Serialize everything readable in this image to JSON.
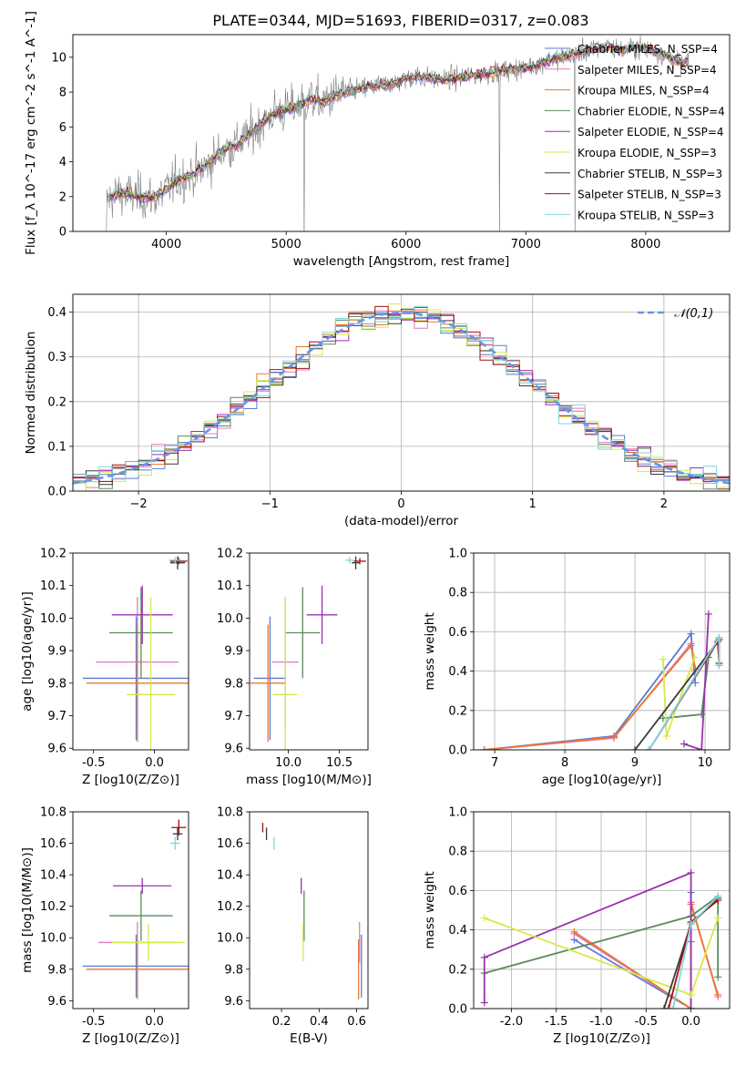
{
  "figure": {
    "title": "PLATE=0344, MJD=51693, FIBERID=0317, z=0.083"
  },
  "chart_data": [
    {
      "id": "spectrum",
      "type": "line",
      "title": "PLATE=0344, MJD=51693, FIBERID=0317, z=0.083",
      "xlabel": "wavelength [Angstrom, rest frame]",
      "ylabel": "Flux [f_λ 10^-17 erg cm^-2 s^-1 A^-1]",
      "xlim": [
        3220,
        8700
      ],
      "ylim": [
        0,
        11.3
      ],
      "xticks": [
        4000,
        5000,
        6000,
        7000,
        8000
      ],
      "yticks": [
        0,
        2,
        4,
        6,
        8,
        10
      ],
      "grid": false,
      "legend_position": "right",
      "legend": [
        {
          "name": "Chabrier MILES, N_SSP=4",
          "color": "#5b7bd5"
        },
        {
          "name": "Salpeter MILES, N_SSP=4",
          "color": "#e377c2"
        },
        {
          "name": "Kroupa MILES, N_SSP=4",
          "color": "#e8792f"
        },
        {
          "name": "Chabrier ELODIE, N_SSP=4",
          "color": "#5a8a5a"
        },
        {
          "name": "Salpeter ELODIE, N_SSP=4",
          "color": "#9b30b0"
        },
        {
          "name": "Kroupa ELODIE, N_SSP=3",
          "color": "#d8e84a"
        },
        {
          "name": "Chabrier STELIB, N_SSP=3",
          "color": "#3a3a3a"
        },
        {
          "name": "Salpeter STELIB, N_SSP=3",
          "color": "#a01010"
        },
        {
          "name": "Kroupa STELIB, N_SSP=3",
          "color": "#7fd6dc"
        }
      ],
      "data_color": "#808080",
      "continuum": [
        [
          3500,
          1.8
        ],
        [
          3600,
          2.2
        ],
        [
          3700,
          2.1
        ],
        [
          3800,
          2.0
        ],
        [
          3900,
          1.9
        ],
        [
          4000,
          2.4
        ],
        [
          4100,
          3.0
        ],
        [
          4200,
          3.2
        ],
        [
          4300,
          3.6
        ],
        [
          4400,
          4.2
        ],
        [
          4500,
          4.8
        ],
        [
          4600,
          5.0
        ],
        [
          4700,
          5.6
        ],
        [
          4800,
          6.2
        ],
        [
          4900,
          6.8
        ],
        [
          5000,
          7.0
        ],
        [
          5100,
          7.2
        ],
        [
          5200,
          7.6
        ],
        [
          5300,
          7.4
        ],
        [
          5400,
          7.8
        ],
        [
          5500,
          8.0
        ],
        [
          5600,
          8.2
        ],
        [
          5700,
          8.3
        ],
        [
          5800,
          8.4
        ],
        [
          5900,
          8.5
        ],
        [
          6000,
          8.8
        ],
        [
          6100,
          8.9
        ],
        [
          6200,
          8.8
        ],
        [
          6300,
          8.7
        ],
        [
          6400,
          8.8
        ],
        [
          6500,
          8.9
        ],
        [
          6600,
          9.0
        ],
        [
          6700,
          9.1
        ],
        [
          6800,
          9.2
        ],
        [
          6900,
          9.3
        ],
        [
          7000,
          9.4
        ],
        [
          7100,
          9.6
        ],
        [
          7200,
          9.8
        ],
        [
          7300,
          10.0
        ],
        [
          7400,
          10.2
        ],
        [
          7500,
          10.4
        ],
        [
          7600,
          10.5
        ],
        [
          7700,
          10.6
        ],
        [
          7800,
          10.4
        ],
        [
          7900,
          10.6
        ],
        [
          8000,
          10.5
        ],
        [
          8100,
          10.3
        ],
        [
          8200,
          10.0
        ],
        [
          8300,
          9.6
        ],
        [
          8350,
          9.8
        ]
      ]
    },
    {
      "id": "residuals",
      "type": "histogram",
      "xlabel": "(data-model)/error",
      "ylabel": "Normed distribution",
      "xlim": [
        -2.5,
        2.5
      ],
      "ylim": [
        0,
        0.44
      ],
      "xticks": [
        -2,
        -1,
        0,
        1,
        2
      ],
      "yticks": [
        0.0,
        0.1,
        0.2,
        0.3,
        0.4
      ],
      "grid": true,
      "legend_position": "top-right",
      "reference_curve": {
        "name": "𝒩(0,1)",
        "mean": 0,
        "sigma": 1,
        "color": "#6495ed"
      },
      "bin_width": 0.1
    },
    {
      "id": "age-vs-Z",
      "type": "errorbar",
      "xlabel": "Z [log10(Z/Z⊙)]",
      "ylabel": "age [log10(age/yr)]",
      "xlim": [
        -0.67,
        0.28
      ],
      "ylim": [
        9.595,
        10.2
      ],
      "xticks": [
        -0.5,
        0.0
      ],
      "yticks": [
        9.6,
        9.7,
        9.8,
        9.9,
        10.0,
        10.1,
        10.2
      ],
      "points": [
        {
          "series": "Chabrier MILES",
          "x": -0.15,
          "y": 9.815,
          "xerr": 0.44,
          "yerr": 0.19
        },
        {
          "series": "Salpeter MILES",
          "x": -0.14,
          "y": 9.865,
          "xerr": 0.34,
          "yerr": 0.2
        },
        {
          "series": "Kroupa MILES",
          "x": -0.14,
          "y": 9.8,
          "xerr": 0.42,
          "yerr": 0.18
        },
        {
          "series": "Chabrier ELODIE",
          "x": -0.11,
          "y": 9.955,
          "xerr": 0.26,
          "yerr": 0.14
        },
        {
          "series": "Salpeter ELODIE",
          "x": -0.1,
          "y": 10.01,
          "xerr": 0.25,
          "yerr": 0.09
        },
        {
          "series": "Kroupa ELODIE",
          "x": -0.03,
          "y": 9.765,
          "xerr": 0.2,
          "yerr": 0.3
        },
        {
          "series": "Chabrier STELIB",
          "x": 0.19,
          "y": 10.17,
          "xerr": 0.06,
          "yerr": 0.02
        },
        {
          "series": "Salpeter STELIB",
          "x": 0.2,
          "y": 10.175,
          "xerr": 0.07,
          "yerr": 0.01
        },
        {
          "series": "Kroupa STELIB",
          "x": 0.17,
          "y": 10.178,
          "xerr": 0.05,
          "yerr": 0.01
        }
      ]
    },
    {
      "id": "age-vs-mass",
      "type": "errorbar",
      "xlabel": "mass [log10(M/M⊙)]",
      "ylabel": "",
      "xlim": [
        9.62,
        10.78
      ],
      "ylim": [
        9.595,
        10.2
      ],
      "xticks": [
        10.0,
        10.5
      ],
      "yticks": [
        9.6,
        9.7,
        9.8,
        9.9,
        10.0,
        10.1,
        10.2
      ],
      "points": [
        {
          "series": "Chabrier MILES",
          "x": 9.82,
          "y": 9.815,
          "xerr": 0.16,
          "yerr": 0.19
        },
        {
          "series": "Salpeter MILES",
          "x": 9.97,
          "y": 9.865,
          "xerr": 0.13,
          "yerr": 0.2
        },
        {
          "series": "Kroupa MILES",
          "x": 9.8,
          "y": 9.8,
          "xerr": 0.17,
          "yerr": 0.18
        },
        {
          "series": "Chabrier ELODIE",
          "x": 10.14,
          "y": 9.955,
          "xerr": 0.17,
          "yerr": 0.14
        },
        {
          "series": "Salpeter ELODIE",
          "x": 10.33,
          "y": 10.01,
          "xerr": 0.15,
          "yerr": 0.09
        },
        {
          "series": "Kroupa ELODIE",
          "x": 9.97,
          "y": 9.765,
          "xerr": 0.12,
          "yerr": 0.3
        },
        {
          "series": "Chabrier STELIB",
          "x": 10.66,
          "y": 10.17,
          "xerr": 0.04,
          "yerr": 0.02
        },
        {
          "series": "Salpeter STELIB",
          "x": 10.7,
          "y": 10.175,
          "xerr": 0.06,
          "yerr": 0.01
        },
        {
          "series": "Kroupa STELIB",
          "x": 10.6,
          "y": 10.178,
          "xerr": 0.04,
          "yerr": 0.01
        }
      ]
    },
    {
      "id": "weight-vs-age",
      "type": "line",
      "xlabel": "age [log10(age/yr)]",
      "ylabel": "mass weight",
      "xlim": [
        6.7,
        10.35
      ],
      "ylim": [
        0,
        1.0
      ],
      "xticks": [
        7,
        8,
        9,
        10
      ],
      "yticks": [
        0.0,
        0.2,
        0.4,
        0.6,
        0.8,
        1.0
      ],
      "grid": true,
      "series": [
        {
          "name": "Chabrier MILES",
          "x": [
            6.85,
            8.7,
            9.8,
            9.86
          ],
          "y": [
            0.0,
            0.07,
            0.59,
            0.34
          ]
        },
        {
          "name": "Salpeter MILES",
          "x": [
            6.85,
            8.7,
            9.8,
            9.86
          ],
          "y": [
            0.0,
            0.06,
            0.54,
            0.4
          ]
        },
        {
          "name": "Kroupa MILES",
          "x": [
            6.85,
            8.7,
            9.8,
            9.86
          ],
          "y": [
            0.0,
            0.065,
            0.53,
            0.41
          ]
        },
        {
          "name": "Chabrier ELODIE",
          "x": [
            9.4,
            9.95,
            10.05,
            10.2
          ],
          "y": [
            0.16,
            0.18,
            0.47,
            0.57
          ]
        },
        {
          "name": "Salpeter ELODIE",
          "x": [
            9.7,
            9.95,
            10.05
          ],
          "y": [
            0.03,
            0.0,
            0.69
          ]
        },
        {
          "name": "Kroupa ELODIE",
          "x": [
            9.4,
            9.45,
            9.85
          ],
          "y": [
            0.46,
            0.07,
            0.47
          ]
        },
        {
          "name": "Chabrier STELIB",
          "x": [
            9.0,
            10.2,
            10.2
          ],
          "y": [
            0.0,
            0.56,
            0.43
          ]
        },
        {
          "name": "Salpeter STELIB",
          "x": [
            9.2,
            10.18,
            10.2
          ],
          "y": [
            0.0,
            0.55,
            0.44
          ]
        },
        {
          "name": "Kroupa STELIB",
          "x": [
            9.2,
            10.2,
            10.2
          ],
          "y": [
            0.0,
            0.57,
            0.43
          ]
        }
      ]
    },
    {
      "id": "mass-vs-Z",
      "type": "errorbar",
      "xlabel": "Z [log10(Z/Z⊙)]",
      "ylabel": "mass [log10(M/M⊙)]",
      "xlim": [
        -0.67,
        0.28
      ],
      "ylim": [
        9.55,
        10.8
      ],
      "xticks": [
        -0.5,
        0.0
      ],
      "yticks": [
        9.6,
        9.8,
        10.0,
        10.2,
        10.4,
        10.6,
        10.8
      ],
      "points": [
        {
          "series": "Chabrier MILES",
          "x": -0.15,
          "y": 9.82,
          "xerr": 0.44,
          "yerr": 0.2
        },
        {
          "series": "Salpeter MILES",
          "x": -0.14,
          "y": 9.97,
          "xerr": 0.32,
          "yerr": 0.13
        },
        {
          "series": "Kroupa MILES",
          "x": -0.14,
          "y": 9.8,
          "xerr": 0.42,
          "yerr": 0.19
        },
        {
          "series": "Chabrier ELODIE",
          "x": -0.11,
          "y": 10.14,
          "xerr": 0.26,
          "yerr": 0.16
        },
        {
          "series": "Salpeter ELODIE",
          "x": -0.1,
          "y": 10.33,
          "xerr": 0.24,
          "yerr": 0.05
        },
        {
          "series": "Kroupa ELODIE",
          "x": -0.05,
          "y": 9.97,
          "xerr": 0.3,
          "yerr": 0.12
        },
        {
          "series": "Chabrier STELIB",
          "x": 0.19,
          "y": 10.66,
          "xerr": 0.04,
          "yerr": 0.04
        },
        {
          "series": "Salpeter STELIB",
          "x": 0.2,
          "y": 10.7,
          "xerr": 0.06,
          "yerr": 0.05
        },
        {
          "series": "Kroupa STELIB",
          "x": 0.17,
          "y": 10.6,
          "xerr": 0.04,
          "yerr": 0.04
        }
      ]
    },
    {
      "id": "mass-vs-EBV",
      "type": "errorbar",
      "xlabel": "E(B-V)",
      "ylabel": "",
      "xlim": [
        0.03,
        0.66
      ],
      "ylim": [
        9.55,
        10.8
      ],
      "xticks": [
        0.2,
        0.4,
        0.6
      ],
      "yticks": [
        9.6,
        9.8,
        10.0,
        10.2,
        10.4,
        10.6,
        10.8
      ],
      "points": [
        {
          "series": "Chabrier MILES",
          "x": 0.625,
          "y": 9.82,
          "xerr": 0.0,
          "yerr": 0.2
        },
        {
          "series": "Salpeter MILES",
          "x": 0.615,
          "y": 9.97,
          "xerr": 0.0,
          "yerr": 0.13
        },
        {
          "series": "Kroupa MILES",
          "x": 0.61,
          "y": 9.8,
          "xerr": 0.0,
          "yerr": 0.19
        },
        {
          "series": "Chabrier ELODIE",
          "x": 0.32,
          "y": 10.14,
          "xerr": 0.0,
          "yerr": 0.16
        },
        {
          "series": "Salpeter ELODIE",
          "x": 0.305,
          "y": 10.33,
          "xerr": 0.0,
          "yerr": 0.05
        },
        {
          "series": "Kroupa ELODIE",
          "x": 0.315,
          "y": 9.97,
          "xerr": 0.0,
          "yerr": 0.12
        },
        {
          "series": "Chabrier STELIB",
          "x": 0.12,
          "y": 10.66,
          "xerr": 0.0,
          "yerr": 0.04
        },
        {
          "series": "Salpeter STELIB",
          "x": 0.1,
          "y": 10.7,
          "xerr": 0.0,
          "yerr": 0.03
        },
        {
          "series": "Kroupa STELIB",
          "x": 0.16,
          "y": 10.6,
          "xerr": 0.0,
          "yerr": 0.04
        }
      ]
    },
    {
      "id": "weight-vs-Z",
      "type": "line",
      "xlabel": "Z [log10(Z/Z⊙)]",
      "ylabel": "mass weight",
      "xlim": [
        -2.42,
        0.43
      ],
      "ylim": [
        0,
        1.0
      ],
      "xticks": [
        -2.0,
        -1.5,
        -1.0,
        -0.5,
        0.0
      ],
      "yticks": [
        0.0,
        0.2,
        0.4,
        0.6,
        0.8,
        1.0
      ],
      "grid": true,
      "series": [
        {
          "name": "Chabrier MILES",
          "x": [
            -1.3,
            0.0,
            0.0,
            0.0
          ],
          "y": [
            0.35,
            0.0,
            0.59,
            0.34
          ]
        },
        {
          "name": "Salpeter MILES",
          "x": [
            -1.3,
            0.0,
            0.0,
            0.3
          ],
          "y": [
            0.38,
            0.0,
            0.54,
            0.06
          ]
        },
        {
          "name": "Kroupa MILES",
          "x": [
            -1.3,
            0.0,
            0.0,
            0.3
          ],
          "y": [
            0.39,
            0.0,
            0.53,
            0.07
          ]
        },
        {
          "name": "Chabrier ELODIE",
          "x": [
            -2.3,
            0.0,
            0.3,
            0.3
          ],
          "y": [
            0.18,
            0.47,
            0.57,
            0.16
          ]
        },
        {
          "name": "Salpeter ELODIE",
          "x": [
            -2.3,
            -2.3,
            0.0,
            0.0
          ],
          "y": [
            0.03,
            0.26,
            0.69,
            0.0
          ]
        },
        {
          "name": "Kroupa ELODIE",
          "x": [
            -2.3,
            0.0,
            0.0,
            0.3
          ],
          "y": [
            0.46,
            0.07,
            0.07,
            0.46
          ]
        },
        {
          "name": "Chabrier STELIB",
          "x": [
            -0.3,
            0.0,
            0.3
          ],
          "y": [
            0.0,
            0.43,
            0.56
          ]
        },
        {
          "name": "Salpeter STELIB",
          "x": [
            -0.25,
            0.0,
            0.3
          ],
          "y": [
            0.0,
            0.44,
            0.55
          ]
        },
        {
          "name": "Kroupa STELIB",
          "x": [
            -0.2,
            0.0,
            0.3
          ],
          "y": [
            0.0,
            0.43,
            0.57
          ]
        }
      ]
    }
  ]
}
